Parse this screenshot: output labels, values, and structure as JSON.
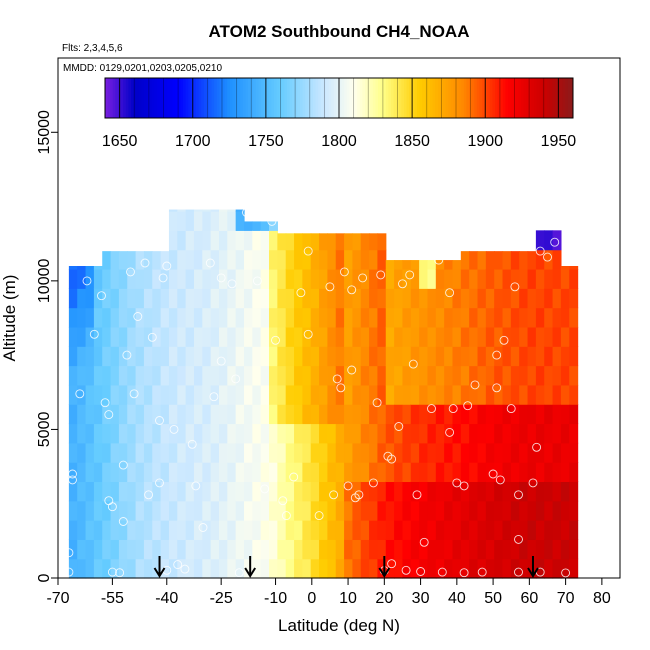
{
  "chart_data": {
    "type": "heatmap",
    "title": "ATOM2 Southbound CH4_NOAA",
    "flights_label": "Flts: 2,3,4,5,6",
    "dates_label": "MMDD: 0129,0201,0203,0205,0210",
    "xlabel": "Latitude (deg N)",
    "ylabel": "Altitude (m)",
    "xlim": [
      -70,
      85
    ],
    "ylim": [
      0,
      17500
    ],
    "x_ticks": [
      -70,
      -55,
      -40,
      -25,
      -10,
      0,
      10,
      20,
      30,
      40,
      50,
      60,
      70,
      80
    ],
    "y_ticks": [
      0,
      5000,
      10000,
      15000
    ],
    "colorbar": {
      "min": 1640,
      "max": 1960,
      "ticks": [
        1650,
        1700,
        1750,
        1800,
        1850,
        1900,
        1950
      ],
      "colors": [
        "#7a1fe0",
        "#0000c8",
        "#0000ff",
        "#1e90ff",
        "#66ccff",
        "#cce8ff",
        "#ffffee",
        "#ffff88",
        "#ffcc00",
        "#ff8800",
        "#ff0000",
        "#cc0000",
        "#8b1a1a"
      ],
      "color_positions": [
        1640,
        1660,
        1690,
        1725,
        1760,
        1790,
        1810,
        1830,
        1855,
        1885,
        1915,
        1940,
        1960
      ]
    },
    "field_anchors": [
      [
        -68,
        1740
      ],
      [
        -58,
        1760
      ],
      [
        -48,
        1780
      ],
      [
        -38,
        1790
      ],
      [
        -28,
        1795
      ],
      [
        -18,
        1805
      ],
      [
        -12,
        1810
      ],
      [
        -6,
        1830
      ],
      [
        0,
        1845
      ],
      [
        5,
        1860
      ],
      [
        10,
        1875
      ],
      [
        15,
        1885
      ],
      [
        20,
        1895
      ],
      [
        30,
        1905
      ],
      [
        40,
        1912
      ],
      [
        50,
        1920
      ],
      [
        60,
        1925
      ],
      [
        70,
        1925
      ]
    ],
    "observations": [
      [
        -67,
        200
      ],
      [
        -67,
        850
      ],
      [
        -66,
        3500
      ],
      [
        -66,
        3300
      ],
      [
        -64,
        6200
      ],
      [
        -62,
        10000
      ],
      [
        -60,
        8200
      ],
      [
        -58,
        9500
      ],
      [
        -57,
        5900
      ],
      [
        -56,
        5500
      ],
      [
        -56,
        2600
      ],
      [
        -55,
        2400
      ],
      [
        -55,
        200
      ],
      [
        -53,
        180
      ],
      [
        -52,
        1900
      ],
      [
        -52,
        3800
      ],
      [
        -51,
        7500
      ],
      [
        -50,
        10300
      ],
      [
        -49,
        6200
      ],
      [
        -48,
        8800
      ],
      [
        -46,
        10600
      ],
      [
        -45,
        2800
      ],
      [
        -44,
        8100
      ],
      [
        -42,
        5300
      ],
      [
        -42,
        3200
      ],
      [
        -41,
        10100
      ],
      [
        -40,
        10500
      ],
      [
        -40,
        260
      ],
      [
        -38,
        5000
      ],
      [
        -37,
        450
      ],
      [
        -35,
        300
      ],
      [
        -33,
        4500
      ],
      [
        -32,
        3100
      ],
      [
        -30,
        1700
      ],
      [
        -28,
        10600
      ],
      [
        -27,
        6100
      ],
      [
        -25,
        7300
      ],
      [
        -25,
        10100
      ],
      [
        -22,
        9900
      ],
      [
        -21,
        6700
      ],
      [
        -20,
        180
      ],
      [
        -18,
        12300
      ],
      [
        -15,
        10000
      ],
      [
        -13,
        3000
      ],
      [
        -11,
        12000
      ],
      [
        -10,
        8000
      ],
      [
        -8,
        2600
      ],
      [
        -7,
        2100
      ],
      [
        -5,
        3400
      ],
      [
        -3,
        9600
      ],
      [
        -1,
        11000
      ],
      [
        -1,
        8200
      ],
      [
        2,
        2100
      ],
      [
        5,
        9800
      ],
      [
        6,
        2800
      ],
      [
        7,
        6700
      ],
      [
        8,
        6400
      ],
      [
        9,
        10300
      ],
      [
        10,
        3100
      ],
      [
        11,
        7000
      ],
      [
        11,
        9700
      ],
      [
        12,
        2700
      ],
      [
        13,
        2800
      ],
      [
        14,
        10100
      ],
      [
        17,
        3200
      ],
      [
        18,
        5900
      ],
      [
        19,
        10200
      ],
      [
        20,
        250
      ],
      [
        21,
        4100
      ],
      [
        22,
        4000
      ],
      [
        22,
        480
      ],
      [
        24,
        5100
      ],
      [
        25,
        9900
      ],
      [
        26,
        260
      ],
      [
        27,
        10200
      ],
      [
        28,
        7200
      ],
      [
        29,
        2800
      ],
      [
        30,
        220
      ],
      [
        31,
        1200
      ],
      [
        33,
        5700
      ],
      [
        35,
        10700
      ],
      [
        36,
        200
      ],
      [
        38,
        9600
      ],
      [
        38,
        4900
      ],
      [
        39,
        5700
      ],
      [
        40,
        3200
      ],
      [
        42,
        3100
      ],
      [
        42,
        180
      ],
      [
        43,
        5800
      ],
      [
        45,
        6500
      ],
      [
        47,
        200
      ],
      [
        50,
        3500
      ],
      [
        51,
        7500
      ],
      [
        51,
        6400
      ],
      [
        52,
        3300
      ],
      [
        53,
        8000
      ],
      [
        55,
        5700
      ],
      [
        56,
        9800
      ],
      [
        57,
        2800
      ],
      [
        57,
        1300
      ],
      [
        57,
        200
      ],
      [
        61,
        3200
      ],
      [
        62,
        4400
      ],
      [
        63,
        200
      ],
      [
        63,
        11000
      ],
      [
        65,
        10800
      ],
      [
        67,
        11300
      ],
      [
        70,
        170
      ]
    ],
    "profile_markers": [
      -42,
      -17,
      20,
      61
    ]
  }
}
